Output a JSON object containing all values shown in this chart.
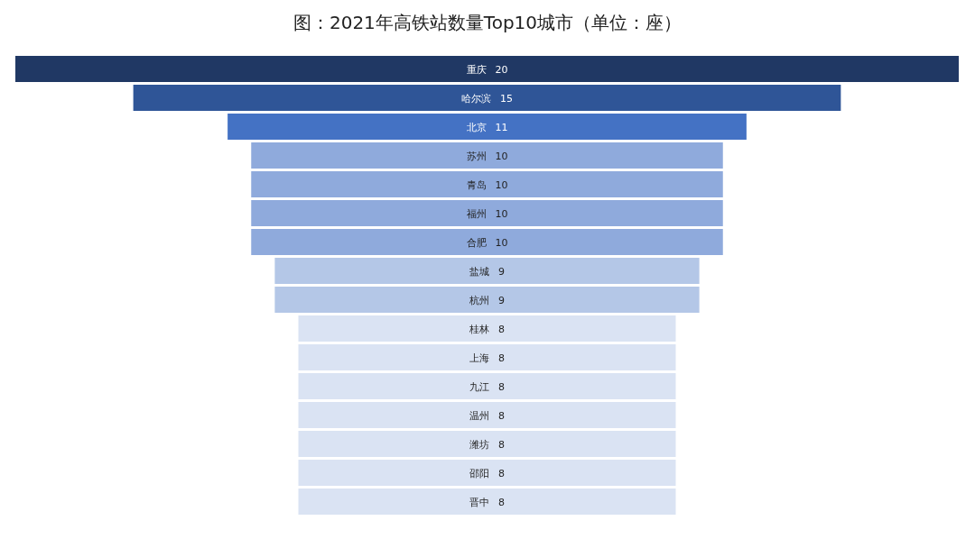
{
  "chart_data": {
    "type": "other",
    "title": "图：2021年高铁站数量Top10城市（单位：座）",
    "categories": [
      "重庆",
      "哈尔滨",
      "北京",
      "苏州",
      "青岛",
      "福州",
      "合肥",
      "盐城",
      "杭州",
      "桂林",
      "上海",
      "九江",
      "温州",
      "潍坊",
      "邵阳",
      "晋中"
    ],
    "values": [
      20,
      15,
      11,
      10,
      10,
      10,
      10,
      9,
      9,
      8,
      8,
      8,
      8,
      8,
      8,
      8
    ],
    "colors": [
      "#203864",
      "#2f5597",
      "#4472c4",
      "#8faadc",
      "#8faadc",
      "#8faadc",
      "#8faadc",
      "#b4c7e7",
      "#b4c7e7",
      "#dae3f3",
      "#dae3f3",
      "#dae3f3",
      "#dae3f3",
      "#dae3f3",
      "#dae3f3",
      "#dae3f3"
    ],
    "data_labels": true
  }
}
